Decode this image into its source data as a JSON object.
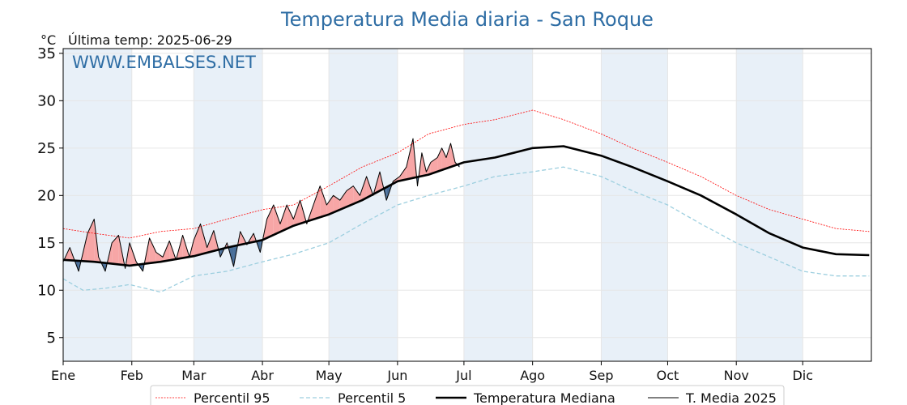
{
  "chart_data": {
    "type": "line",
    "title": "Temperatura Media diaria - San Roque",
    "unit": "°C",
    "subtitle": "Última temp: 2025-06-29",
    "watermark": "WWW.EMBALSES.NET",
    "ylim": [
      2.5,
      35.5
    ],
    "yticks": [
      5,
      10,
      15,
      20,
      25,
      30,
      35
    ],
    "months": [
      "Ene",
      "Feb",
      "Mar",
      "Abr",
      "May",
      "Jun",
      "Jul",
      "Ago",
      "Sep",
      "Oct",
      "Nov",
      "Dic"
    ],
    "month_start_day": [
      1,
      32,
      60,
      91,
      121,
      152,
      182,
      213,
      244,
      274,
      305,
      335
    ],
    "days_in_year": 365,
    "grid": true,
    "legend_position": "bottom-center",
    "colors": {
      "p95": "#ff0000",
      "p5": "#9dcfdf",
      "median": "#000000",
      "current": "#000000",
      "above_fill": "#f7a6a6",
      "below_fill": "#4a6f99",
      "band": "#e8f0f8",
      "title": "#2e6da4"
    },
    "series": [
      {
        "key": "p95",
        "name": "Percentil 95",
        "style": "dotted",
        "points": [
          [
            1,
            16.5
          ],
          [
            15,
            16
          ],
          [
            31,
            15.5
          ],
          [
            45,
            16.2
          ],
          [
            60,
            16.5
          ],
          [
            75,
            17.5
          ],
          [
            91,
            18.5
          ],
          [
            105,
            19
          ],
          [
            121,
            21
          ],
          [
            136,
            23
          ],
          [
            152,
            24.5
          ],
          [
            166,
            26.5
          ],
          [
            182,
            27.5
          ],
          [
            196,
            28
          ],
          [
            213,
            29
          ],
          [
            227,
            28
          ],
          [
            244,
            26.5
          ],
          [
            258,
            25
          ],
          [
            274,
            23.5
          ],
          [
            289,
            22
          ],
          [
            305,
            20
          ],
          [
            320,
            18.5
          ],
          [
            335,
            17.5
          ],
          [
            350,
            16.5
          ],
          [
            365,
            16.2
          ]
        ]
      },
      {
        "key": "p5",
        "name": "Percentil 5",
        "style": "dashed",
        "points": [
          [
            1,
            11.2
          ],
          [
            10,
            10
          ],
          [
            20,
            10.2
          ],
          [
            31,
            10.6
          ],
          [
            45,
            9.8
          ],
          [
            60,
            11.5
          ],
          [
            75,
            12
          ],
          [
            91,
            13
          ],
          [
            105,
            13.8
          ],
          [
            121,
            15
          ],
          [
            136,
            17
          ],
          [
            152,
            19
          ],
          [
            166,
            20
          ],
          [
            182,
            21
          ],
          [
            196,
            22
          ],
          [
            213,
            22.5
          ],
          [
            227,
            23
          ],
          [
            244,
            22
          ],
          [
            258,
            20.5
          ],
          [
            274,
            19
          ],
          [
            289,
            17
          ],
          [
            305,
            15
          ],
          [
            320,
            13.5
          ],
          [
            335,
            12
          ],
          [
            350,
            11.5
          ],
          [
            365,
            11.5
          ]
        ]
      },
      {
        "key": "median",
        "name": "Temperatura Mediana",
        "style": "solid",
        "points": [
          [
            1,
            13.2
          ],
          [
            15,
            13
          ],
          [
            31,
            12.6
          ],
          [
            45,
            13
          ],
          [
            60,
            13.6
          ],
          [
            75,
            14.5
          ],
          [
            91,
            15.3
          ],
          [
            105,
            16.8
          ],
          [
            121,
            18
          ],
          [
            136,
            19.5
          ],
          [
            152,
            21.5
          ],
          [
            166,
            22.2
          ],
          [
            182,
            23.5
          ],
          [
            196,
            24
          ],
          [
            213,
            25
          ],
          [
            227,
            25.2
          ],
          [
            244,
            24.2
          ],
          [
            258,
            23
          ],
          [
            274,
            21.5
          ],
          [
            289,
            20
          ],
          [
            305,
            18
          ],
          [
            320,
            16
          ],
          [
            335,
            14.5
          ],
          [
            350,
            13.8
          ],
          [
            365,
            13.7
          ]
        ]
      },
      {
        "key": "current",
        "name": "T. Media 2025",
        "style": "solid",
        "points": [
          [
            1,
            13
          ],
          [
            4,
            14.5
          ],
          [
            8,
            12
          ],
          [
            12,
            16
          ],
          [
            15,
            17.5
          ],
          [
            17,
            13.5
          ],
          [
            20,
            12
          ],
          [
            23,
            15
          ],
          [
            26,
            15.8
          ],
          [
            29,
            12.3
          ],
          [
            31,
            15
          ],
          [
            34,
            13
          ],
          [
            37,
            12
          ],
          [
            40,
            15.5
          ],
          [
            43,
            14
          ],
          [
            46,
            13.5
          ],
          [
            49,
            15.2
          ],
          [
            52,
            13.2
          ],
          [
            55,
            15.8
          ],
          [
            58,
            13.5
          ],
          [
            60,
            15.3
          ],
          [
            63,
            17
          ],
          [
            66,
            14.5
          ],
          [
            69,
            16.3
          ],
          [
            72,
            13.5
          ],
          [
            75,
            15
          ],
          [
            78,
            12.5
          ],
          [
            81,
            16.2
          ],
          [
            84,
            14.8
          ],
          [
            87,
            16
          ],
          [
            90,
            14
          ],
          [
            93,
            17.5
          ],
          [
            96,
            19
          ],
          [
            99,
            17
          ],
          [
            102,
            19
          ],
          [
            105,
            17.5
          ],
          [
            108,
            19.5
          ],
          [
            111,
            17
          ],
          [
            114,
            19
          ],
          [
            117,
            21
          ],
          [
            120,
            19
          ],
          [
            123,
            20
          ],
          [
            126,
            19.5
          ],
          [
            129,
            20.5
          ],
          [
            132,
            21
          ],
          [
            135,
            20
          ],
          [
            138,
            22
          ],
          [
            141,
            20
          ],
          [
            144,
            22.5
          ],
          [
            147,
            19.5
          ],
          [
            150,
            21.5
          ],
          [
            153,
            22
          ],
          [
            156,
            23
          ],
          [
            159,
            26
          ],
          [
            161,
            21
          ],
          [
            163,
            24.5
          ],
          [
            165,
            22.5
          ],
          [
            167,
            23.5
          ],
          [
            170,
            24
          ],
          [
            172,
            25
          ],
          [
            174,
            24
          ],
          [
            176,
            25.5
          ],
          [
            178,
            23.5
          ],
          [
            180,
            23
          ]
        ]
      }
    ]
  },
  "legend": [
    {
      "key": "p95",
      "label": "Percentil 95"
    },
    {
      "key": "p5",
      "label": "Percentil 5"
    },
    {
      "key": "median",
      "label": "Temperatura Mediana"
    },
    {
      "key": "current",
      "label": "T. Media 2025"
    }
  ]
}
